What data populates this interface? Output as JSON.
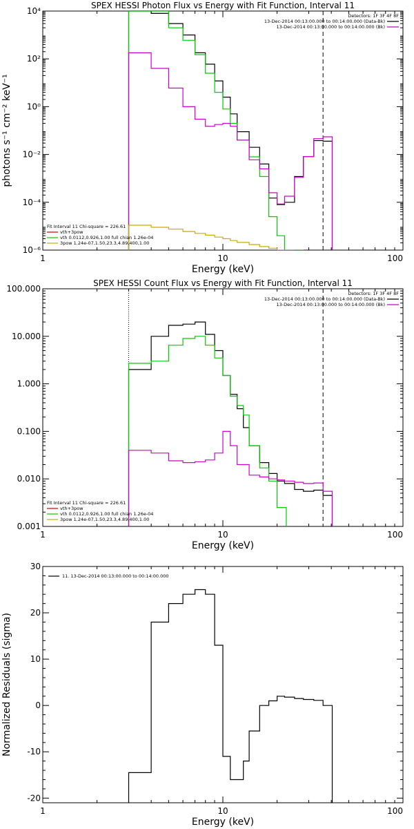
{
  "charts": [
    {
      "type": "line",
      "title": "SPEX HESSI Photon Flux vs Energy with Fit Function, Interval 11",
      "xlabel": "Energy (keV)",
      "ylabel": "photons s⁻¹ cm⁻² keV⁻¹",
      "xscale": "log",
      "yscale": "log",
      "xlim": [
        1,
        100
      ],
      "ylim": [
        1e-06,
        10000
      ],
      "xticks": [
        {
          "v": 1,
          "label": "1"
        },
        {
          "v": 10,
          "label": "10"
        },
        {
          "v": 100,
          "label": "100"
        }
      ],
      "yticks": [
        {
          "v": 10000,
          "label": "10⁴"
        },
        {
          "v": 100,
          "label": "10²"
        },
        {
          "v": 1,
          "label": "10⁰"
        },
        {
          "v": 0.01,
          "label": "10⁻²"
        },
        {
          "v": 0.0001,
          "label": "10⁻⁴"
        },
        {
          "v": 1e-06,
          "label": "10⁻⁶"
        }
      ],
      "vlines": [
        {
          "x": 3,
          "style": "dotted"
        },
        {
          "x": 36,
          "style": "dashed"
        }
      ],
      "legend_topright": [
        {
          "text": "Detectors: 1F 3F 4F 8F",
          "color": ""
        },
        {
          "text": "13-Dec-2014 00:13:00.000 to 00:14:00.000 (Data-Bk)",
          "color": "#000000"
        },
        {
          "text": "13-Dec-2014 00:13:00.000 to 00:14:00.000 (Bk)",
          "color": "#cc00cc"
        }
      ],
      "legend_bottomleft": [
        {
          "text": "Fit Interval 11    Chi-square = 226.61",
          "color": ""
        },
        {
          "text": "vth+3pow",
          "color": "#cc0000"
        },
        {
          "text": "vth 0.0112,0.926,1.00  full chian 1.26e-04",
          "color": "#00cc00"
        },
        {
          "text": "3pow 1.24e-07,1.50,23.3,4.89,400,1.00",
          "color": "#ccaa00"
        }
      ],
      "series": [
        {
          "color": "#000000",
          "x": [
            3,
            4,
            5,
            6,
            7,
            8,
            9,
            10,
            11,
            12,
            14,
            16,
            18,
            20,
            22,
            25,
            28,
            32,
            36
          ],
          "y": [
            10000,
            8000,
            3000,
            1000,
            180,
            60,
            12,
            2.5,
            0.5,
            0.09,
            0.02,
            0.004,
            0.00015,
            8e-05,
            0.0001,
            0.0012,
            0.0082,
            0.038,
            0.036
          ]
        },
        {
          "color": "#00cc00",
          "x": [
            3,
            4,
            5,
            6,
            7,
            8,
            9,
            10,
            11,
            12,
            14,
            16,
            18,
            20,
            22,
            25
          ],
          "y": [
            10000,
            10000,
            2000,
            600,
            150,
            25,
            4,
            0.8,
            0.2,
            0.04,
            0.008,
            0.0012,
            2.5e-05,
            4e-06,
            5e-07,
            5e-07
          ]
        },
        {
          "color": "#cc00cc",
          "x": [
            3,
            4,
            5,
            6,
            7,
            8,
            9,
            10,
            11,
            12,
            14,
            16,
            18,
            20,
            22,
            25,
            28,
            32,
            36
          ],
          "y": [
            180,
            40,
            6,
            1,
            0.3,
            0.15,
            0.18,
            0.2,
            0.15,
            0.04,
            0.006,
            0.0025,
            0.00025,
            8.5e-05,
            0.00018,
            0.0011,
            0.0082,
            0.046,
            0.055
          ]
        },
        {
          "color": "#ccaa00",
          "x": [
            3,
            4,
            5,
            6,
            7,
            8,
            9,
            10,
            11,
            12,
            14,
            16,
            18,
            20,
            22
          ],
          "y": [
            1.1e-05,
            9e-06,
            7.5e-06,
            6e-06,
            5e-06,
            4.2e-06,
            3.5e-06,
            3e-06,
            2.5e-06,
            2.1e-06,
            1.7e-06,
            1.4e-06,
            1.2e-06,
            1e-06,
            9e-07
          ]
        }
      ]
    },
    {
      "type": "line",
      "title": "SPEX HESSI Count Flux vs Energy with Fit Function, Interval 11",
      "xlabel": "Energy (keV)",
      "ylabel": "",
      "xscale": "log",
      "yscale": "log",
      "xlim": [
        1,
        100
      ],
      "ylim": [
        0.001,
        100
      ],
      "xticks": [
        {
          "v": 1,
          "label": "1"
        },
        {
          "v": 10,
          "label": "10"
        },
        {
          "v": 100,
          "label": "100"
        }
      ],
      "yticks": [
        {
          "v": 100,
          "label": "100.000"
        },
        {
          "v": 10,
          "label": "10.000"
        },
        {
          "v": 1,
          "label": "1.000"
        },
        {
          "v": 0.1,
          "label": "0.100"
        },
        {
          "v": 0.01,
          "label": "0.010"
        },
        {
          "v": 0.001,
          "label": "0.001"
        }
      ],
      "vlines": [
        {
          "x": 3,
          "style": "dotted"
        },
        {
          "x": 36,
          "style": "dashed"
        }
      ],
      "legend_topright": [
        {
          "text": "Detectors: 1F 3F 4F 8F",
          "color": ""
        },
        {
          "text": "13-Dec-2014 00:13:00.000 to 00:14:00.000 (Data-Bk)",
          "color": "#000000"
        },
        {
          "text": "13-Dec-2014 00:13:00.000 to 00:14:00.000 (Bk)",
          "color": "#cc00cc"
        }
      ],
      "legend_bottomleft": [
        {
          "text": "Fit Interval 11    Chi-square = 226.61",
          "color": ""
        },
        {
          "text": "vth+3pow",
          "color": "#cc0000"
        },
        {
          "text": "vth 0.0112,0.926,1.00  full chian 1.26e-04",
          "color": "#00cc00"
        },
        {
          "text": "3pow 1.24e-07,1.50,23.3,4.89,400,1.00",
          "color": "#ccaa00"
        }
      ],
      "series": [
        {
          "color": "#000000",
          "x": [
            3,
            4,
            5,
            6,
            7,
            8,
            9,
            10,
            11,
            12,
            13,
            14,
            16,
            18,
            20,
            22,
            25,
            28,
            32,
            36
          ],
          "y": [
            2,
            10,
            17,
            18,
            20,
            11,
            5,
            1.5,
            0.6,
            0.3,
            0.12,
            0.05,
            0.022,
            0.013,
            0.009,
            0.008,
            0.006,
            0.0055,
            0.0058,
            0.0045
          ]
        },
        {
          "color": "#00cc00",
          "x": [
            3,
            4,
            5,
            6,
            7,
            8,
            9,
            10,
            11,
            12,
            13,
            14,
            16,
            18,
            20
          ],
          "y": [
            2.7,
            3,
            6.5,
            9,
            10,
            6.5,
            3.5,
            1.5,
            0.55,
            0.35,
            0.22,
            0.05,
            0.017,
            0.009,
            0.0025
          ]
        },
        {
          "color": "#cc00cc",
          "x": [
            3,
            4,
            5,
            6,
            7,
            8,
            9,
            10,
            11,
            12,
            14,
            16,
            18,
            20,
            22,
            25,
            28,
            32,
            36
          ],
          "y": [
            0.04,
            0.035,
            0.024,
            0.022,
            0.023,
            0.025,
            0.035,
            0.1,
            0.05,
            0.02,
            0.012,
            0.011,
            0.01,
            0.0095,
            0.009,
            0.0085,
            0.008,
            0.0082,
            0.0055
          ]
        }
      ]
    },
    {
      "type": "line",
      "title": "",
      "xlabel": "Energy (keV)",
      "ylabel": "Normalized Residuals (sigma)",
      "xscale": "log",
      "yscale": "linear",
      "xlim": [
        1,
        100
      ],
      "ylim": [
        -21,
        30
      ],
      "xticks": [
        {
          "v": 1,
          "label": "1"
        },
        {
          "v": 10,
          "label": "10"
        },
        {
          "v": 100,
          "label": "100"
        }
      ],
      "yticks": [
        {
          "v": 30,
          "label": "30"
        },
        {
          "v": 20,
          "label": "20"
        },
        {
          "v": 10,
          "label": "10"
        },
        {
          "v": 0,
          "label": "0"
        },
        {
          "v": -10,
          "label": "-10"
        },
        {
          "v": -20,
          "label": "-20"
        }
      ],
      "vlines": [],
      "legend_topright": [],
      "legend_bottomleft": [],
      "legend_topleft": [
        {
          "text": "11. 13-Dec-2014 00:13:00.000 to 00:14:00.000",
          "color": "#000000"
        }
      ],
      "series": [
        {
          "color": "#000000",
          "x": [
            3,
            4,
            5,
            6,
            7,
            8,
            9,
            10,
            11,
            12,
            13,
            14,
            16,
            18,
            20,
            22,
            25,
            28,
            32,
            36
          ],
          "y": [
            -14.5,
            18,
            22,
            24,
            25,
            24,
            13,
            -11,
            -16,
            -16,
            -12,
            -5.5,
            0,
            1,
            2,
            1.8,
            1.5,
            1.3,
            1.1,
            0
          ]
        }
      ]
    }
  ]
}
